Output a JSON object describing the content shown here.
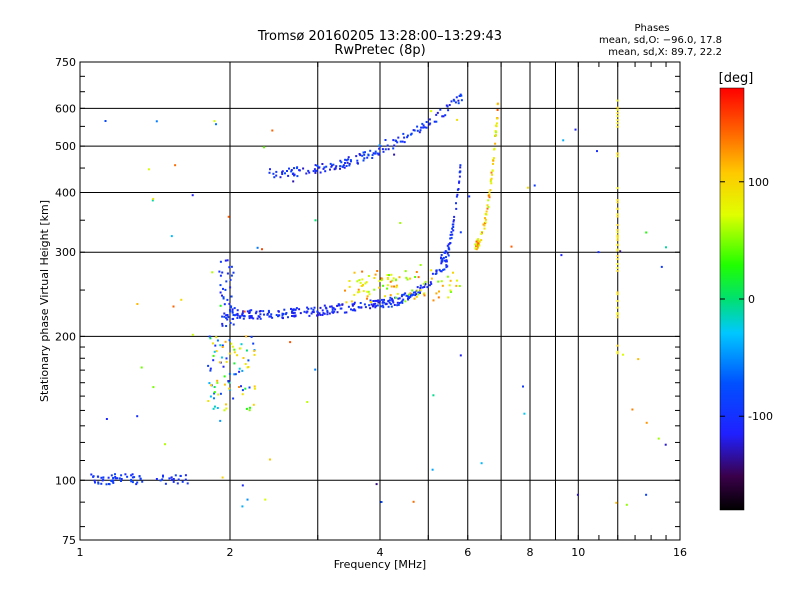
{
  "title": "Tromsø 20160205 13:28:00–13:29:43",
  "subtitle": "RwPretec (8p)",
  "stats": {
    "heading": "Phases",
    "line_o": "mean, sd,O: −96.0, 17.8",
    "line_x": "mean, sd,X:  89.7, 22.2"
  },
  "colorbar": {
    "unit_label": "[deg]",
    "ticks": [
      {
        "value": 100,
        "label": "100"
      },
      {
        "value": 0,
        "label": "0"
      },
      {
        "value": -100,
        "label": "-100"
      }
    ],
    "range": [
      -180,
      180
    ]
  },
  "chart_data": {
    "type": "scatter",
    "xlabel": "Frequency [MHz]",
    "ylabel": "Stationary phase Virtual Height [km]",
    "x_scale": "log",
    "y_scale": "log",
    "xlim": [
      1,
      16
    ],
    "ylim": [
      75,
      750
    ],
    "grid": true,
    "x_ticks": [
      {
        "value": 1,
        "label": "1"
      },
      {
        "value": 2,
        "label": "2"
      },
      {
        "value": 4,
        "label": "4"
      },
      {
        "value": 6,
        "label": "6"
      },
      {
        "value": 8,
        "label": "8"
      },
      {
        "value": 10,
        "label": "10"
      },
      {
        "value": 16,
        "label": "16"
      }
    ],
    "x_minor_gridlines": [
      3,
      5,
      7,
      9,
      12
    ],
    "y_ticks": [
      {
        "value": 75,
        "label": "75"
      },
      {
        "value": 100,
        "label": "100"
      },
      {
        "value": 200,
        "label": "200"
      },
      {
        "value": 300,
        "label": "300"
      },
      {
        "value": 400,
        "label": "400"
      },
      {
        "value": 500,
        "label": "500"
      },
      {
        "value": 600,
        "label": "600"
      },
      {
        "value": 750,
        "label": "750"
      }
    ],
    "point_groups": [
      {
        "id": "E-layer",
        "x": [
          1.05,
          1.65
        ],
        "y": [
          98,
          103
        ],
        "phase": [
          -110,
          -80
        ],
        "n": 70
      },
      {
        "id": "Es-spread",
        "x": [
          1.8,
          2.25
        ],
        "y": [
          140,
          200
        ],
        "phase": [
          -120,
          130
        ],
        "n": 90
      },
      {
        "id": "F1-spread-low",
        "x": [
          1.9,
          2.05
        ],
        "y": [
          210,
          290
        ],
        "phase": [
          -120,
          -80
        ],
        "n": 45
      },
      {
        "id": "F1-trace",
        "x": [
          1.95,
          4.0
        ],
        "y": [
          222,
          235
        ],
        "phase": [
          -125,
          -85
        ],
        "n": 180
      },
      {
        "id": "F1-trace-rise",
        "x": [
          4.0,
          5.5
        ],
        "y": [
          235,
          290
        ],
        "phase": [
          -120,
          -80
        ],
        "n": 90
      },
      {
        "id": "F1-upper-cusp",
        "x": [
          5.3,
          5.8
        ],
        "y": [
          290,
          450
        ],
        "phase": [
          -120,
          -80
        ],
        "n": 50
      },
      {
        "id": "F1-x-mode",
        "x": [
          3.4,
          5.8
        ],
        "y": [
          235,
          275
        ],
        "phase": [
          40,
          140
        ],
        "n": 100
      },
      {
        "id": "F2-trace",
        "x": [
          2.4,
          5.9
        ],
        "y": [
          440,
          640
        ],
        "phase": [
          -125,
          -75
        ],
        "n": 160
      },
      {
        "id": "F2-x-mode",
        "x": [
          6.2,
          6.9
        ],
        "y": [
          310,
          610
        ],
        "phase": [
          60,
          150
        ],
        "n": 80
      },
      {
        "id": "interference-12MHz",
        "x": [
          12.0,
          12.0
        ],
        "y": [
          180,
          630
        ],
        "phase": [
          80,
          110
        ],
        "n": 45
      },
      {
        "id": "scattered-noise",
        "x": [
          1.1,
          15.8
        ],
        "y": [
          85,
          640
        ],
        "phase": [
          -140,
          160
        ],
        "n": 80
      }
    ]
  }
}
